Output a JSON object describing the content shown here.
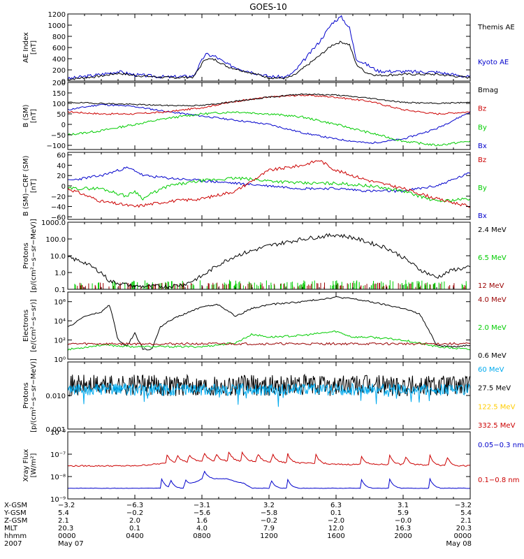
{
  "title": "GOES-10",
  "chart_data": [
    {
      "type": "line",
      "ylabel": "AE Index\n[nT]",
      "ylim": [
        0,
        1200
      ],
      "yticks": [
        0,
        200,
        400,
        600,
        800,
        1000,
        1200
      ],
      "yticklabels": [
        "0",
        "200",
        "400",
        "600",
        "800",
        "1000",
        "1200"
      ],
      "log": false,
      "series": [
        {
          "name": "Kyoto AE",
          "color": "#0000cc",
          "seed": 3,
          "noise": 30,
          "x": [
            0,
            2,
            3,
            4,
            6,
            7.5,
            8.2,
            8.8,
            9.5,
            10.5,
            12,
            13,
            13.5,
            15,
            15.8,
            16.3,
            16.8,
            17.2,
            17.8,
            18.5,
            20,
            22,
            24
          ],
          "y": [
            40,
            120,
            170,
            110,
            70,
            90,
            480,
            440,
            300,
            200,
            80,
            70,
            160,
            700,
            1050,
            1150,
            950,
            400,
            300,
            180,
            170,
            160,
            70
          ]
        },
        {
          "name": "Themis AE",
          "color": "#000000",
          "seed": 7,
          "noise": 20,
          "x": [
            0,
            2,
            3,
            4,
            6,
            7.5,
            8.2,
            8.8,
            9.5,
            10.5,
            12,
            13,
            13.5,
            15,
            15.8,
            16.3,
            16.8,
            17.2,
            17.8,
            18.5,
            20,
            22,
            24
          ],
          "y": [
            30,
            90,
            140,
            100,
            60,
            70,
            400,
            380,
            260,
            180,
            60,
            50,
            100,
            450,
            650,
            700,
            650,
            300,
            150,
            100,
            120,
            120,
            60
          ]
        }
      ]
    },
    {
      "type": "line",
      "ylabel": "B (SM)\n[nT]",
      "ylim": [
        -120,
        200
      ],
      "yticks": [
        -100,
        -50,
        0,
        50,
        100,
        150,
        200
      ],
      "yticklabels": [
        "−100",
        "−50",
        "0",
        "50",
        "100",
        "150",
        "200"
      ],
      "log": false,
      "series": [
        {
          "name": "Bx",
          "color": "#0000cc",
          "seed": 11,
          "noise": 4,
          "x": [
            0,
            2,
            4,
            6,
            8,
            10,
            12,
            14,
            16,
            18,
            20,
            22,
            24
          ],
          "y": [
            70,
            95,
            85,
            60,
            40,
            20,
            0,
            -40,
            -70,
            -90,
            -70,
            -20,
            60
          ]
        },
        {
          "name": "By",
          "color": "#00cc00",
          "seed": 13,
          "noise": 5,
          "x": [
            0,
            2,
            4,
            6,
            8,
            10,
            12,
            14,
            16,
            18,
            20,
            22,
            24
          ],
          "y": [
            -50,
            -30,
            0,
            30,
            50,
            60,
            50,
            35,
            0,
            -40,
            -80,
            -100,
            -80
          ]
        },
        {
          "name": "Bz",
          "color": "#cc0000",
          "seed": 17,
          "noise": 4,
          "x": [
            0,
            2,
            4,
            6,
            8,
            10,
            12,
            14,
            16,
            18,
            20,
            22,
            24
          ],
          "y": [
            60,
            50,
            50,
            60,
            80,
            110,
            130,
            140,
            130,
            110,
            70,
            50,
            60
          ]
        },
        {
          "name": "Bmag",
          "color": "#000000",
          "seed": 19,
          "noise": 3,
          "x": [
            0,
            2,
            4,
            6,
            8,
            10,
            12,
            14,
            16,
            18,
            20,
            22,
            24
          ],
          "y": [
            105,
            100,
            95,
            90,
            90,
            110,
            130,
            145,
            140,
            125,
            105,
            100,
            105
          ]
        }
      ]
    },
    {
      "type": "line",
      "ylabel": "B (SM)−CRF (SM)\n[nT]",
      "ylim": [
        -65,
        65
      ],
      "yticks": [
        -60,
        -40,
        -20,
        0,
        20,
        40,
        60
      ],
      "yticklabels": [
        "−60",
        "−40",
        "−20",
        "0",
        "20",
        "40",
        "60"
      ],
      "log": false,
      "series": [
        {
          "name": "Bx",
          "color": "#0000cc",
          "seed": 23,
          "noise": 2.5,
          "x": [
            0,
            2,
            3.5,
            4,
            4.5,
            6,
            8,
            10,
            12,
            14,
            16,
            18,
            20,
            22,
            24
          ],
          "y": [
            10,
            20,
            35,
            30,
            20,
            15,
            10,
            5,
            0,
            -5,
            -5,
            -10,
            -10,
            0,
            25
          ]
        },
        {
          "name": "By",
          "color": "#00cc00",
          "seed": 29,
          "noise": 3,
          "x": [
            0,
            2,
            3.5,
            4,
            4.5,
            5,
            6,
            8,
            10,
            12,
            14,
            16,
            18,
            20,
            22,
            24
          ],
          "y": [
            -5,
            -5,
            -20,
            -10,
            -25,
            -15,
            0,
            10,
            15,
            10,
            5,
            5,
            0,
            -10,
            -30,
            -25
          ]
        },
        {
          "name": "Bz",
          "color": "#cc0000",
          "seed": 31,
          "noise": 3,
          "x": [
            0,
            2,
            4,
            6,
            8,
            10,
            11,
            12,
            14,
            15,
            16,
            18,
            20,
            22,
            24
          ],
          "y": [
            -5,
            -30,
            -40,
            -30,
            -25,
            -10,
            10,
            30,
            40,
            50,
            30,
            10,
            -5,
            -25,
            -40
          ]
        }
      ]
    },
    {
      "type": "line",
      "ylabel": "Protons\n[p/(cm²−s−sr−MeV)]",
      "ylim": [
        0.1,
        1000
      ],
      "yticks": [
        0.1,
        1,
        10,
        100,
        1000
      ],
      "yticklabels": [
        "0.1",
        "1.0",
        "10.0",
        "100.0",
        "1000.0"
      ],
      "log": true,
      "series": [
        {
          "name": "12 MeV",
          "color": "#990000",
          "seed": 37,
          "noise": 0,
          "spikes": true,
          "spikeY": 0.18,
          "x": [
            0,
            24
          ],
          "y": [
            0.1,
            0.1
          ]
        },
        {
          "name": "6.5 MeV",
          "color": "#00cc00",
          "seed": 41,
          "noise": 0,
          "spikes": true,
          "spikeY": 0.25,
          "x": [
            0,
            24
          ],
          "y": [
            0.1,
            0.1
          ]
        },
        {
          "name": "2.4 MeV",
          "color": "#000000",
          "seed": 43,
          "noise": 0.12,
          "logNoise": true,
          "x": [
            0,
            1,
            2,
            2.5,
            4,
            6,
            7,
            8,
            9,
            10,
            12,
            14,
            16,
            17,
            18,
            19,
            20,
            21,
            22,
            23,
            24
          ],
          "y": [
            8,
            4,
            1,
            0.3,
            0.15,
            0.15,
            0.2,
            0.6,
            3,
            10,
            40,
            100,
            180,
            120,
            60,
            30,
            8,
            1.5,
            0.5,
            1.5,
            2
          ]
        }
      ]
    },
    {
      "type": "line",
      "ylabel": "Electrons\n[e/(cm²−s−sr)]",
      "ylim": [
        1,
        10000000.0
      ],
      "yticks": [
        1,
        100,
        10000,
        1000000
      ],
      "yticklabels": [
        "10⁰",
        "10²",
        "10⁴",
        "10⁶"
      ],
      "log": true,
      "series": [
        {
          "name": "0.6 MeV",
          "color": "#000000",
          "seed": 47,
          "noise": 0.08,
          "logNoise": true,
          "x": [
            0,
            1,
            2,
            2.5,
            3,
            3.5,
            4,
            4.5,
            5,
            5.5,
            6,
            8,
            9,
            10,
            11,
            12,
            14,
            16,
            17,
            18,
            20,
            21,
            22,
            23,
            24
          ],
          "y": [
            2000.0,
            30000.0,
            80000.0,
            500000.0,
            100,
            20,
            500,
            10,
            10,
            2000,
            10000.0,
            300000.0,
            500000.0,
            30000.0,
            200000.0,
            500000.0,
            1000000.0,
            3000000.0,
            2000000.0,
            1000000.0,
            200000.0,
            50000.0,
            30,
            20,
            30
          ]
        },
        {
          "name": "2.0 MeV",
          "color": "#00cc00",
          "seed": 53,
          "noise": 0.1,
          "logNoise": true,
          "x": [
            0,
            2,
            4,
            6,
            8,
            10,
            11,
            12,
            14,
            16,
            17,
            18,
            20,
            22,
            24
          ],
          "y": [
            10,
            30,
            20,
            20,
            20,
            50,
            400,
            200,
            300,
            800,
            200,
            200,
            100,
            20,
            10
          ]
        },
        {
          "name": "4.0 MeV",
          "color": "#990000",
          "seed": 59,
          "noise": 0.12,
          "logNoise": true,
          "x": [
            0,
            24
          ],
          "y": [
            40,
            40
          ]
        }
      ]
    },
    {
      "type": "line",
      "ylabel": "Protons\n[p/(cm²−s−sr−MeV)]",
      "ylim": [
        0.001,
        0.1
      ],
      "yticks": [
        0.001,
        0.01
      ],
      "yticklabels": [
        "0.001",
        "0.010"
      ],
      "log": true,
      "series": [
        {
          "name": "332.5 MeV",
          "color": "#cc0000",
          "seed": 61,
          "noise": 0,
          "hidden": true,
          "x": [
            0,
            24
          ],
          "y": [
            0.01,
            0.01
          ]
        },
        {
          "name": "122.5 MeV",
          "color": "#ffcc00",
          "seed": 67,
          "noise": 0,
          "hidden": true,
          "x": [
            0,
            24
          ],
          "y": [
            0.01,
            0.01
          ]
        },
        {
          "name": "27.5 MeV",
          "color": "#000000",
          "seed": 71,
          "noise": 0.32,
          "logNoise": true,
          "dense": true,
          "x": [
            0,
            24
          ],
          "y": [
            0.02,
            0.02
          ]
        },
        {
          "name": "60 MeV",
          "color": "#00aaee",
          "seed": 73,
          "noise": 0.18,
          "logNoise": true,
          "dense": true,
          "dips": true,
          "x": [
            0,
            24
          ],
          "y": [
            0.015,
            0.015
          ]
        }
      ]
    },
    {
      "type": "line",
      "ylabel": "Xray Flux\n[W/m²]",
      "ylim": [
        1e-09,
        1e-06
      ],
      "yticks": [
        1e-09,
        1e-08,
        1e-07,
        1e-06
      ],
      "yticklabels": [
        "10⁻⁹",
        "10⁻⁸",
        "10⁻⁷",
        "10⁻⁶"
      ],
      "log": true,
      "series": [
        {
          "name": "0.1−0.8 nm",
          "color": "#cc0000",
          "seed": 79,
          "noise": 0.03,
          "logNoise": true,
          "flares": [
            5.9,
            6.5,
            7.2,
            8.1,
            8.8,
            9.6,
            10.4,
            11.3,
            12.2,
            13.1,
            14.8,
            17.5,
            19.2,
            20.1,
            21.6,
            22.6
          ],
          "x": [
            0,
            4,
            6,
            8,
            10,
            12,
            14,
            16,
            18,
            20,
            24
          ],
          "y": [
            3e-08,
            3e-08,
            4e-08,
            5e-08,
            5e-08,
            4.5e-08,
            4e-08,
            3.5e-08,
            3.5e-08,
            3.5e-08,
            3e-08
          ]
        },
        {
          "name": "0.05−0.3 nm",
          "color": "#0000cc",
          "seed": 83,
          "noise": 0.01,
          "logNoise": true,
          "flares": [
            5.6,
            6.1,
            7.0,
            8.1,
            12.1,
            13.1,
            17.5,
            19.2,
            21.6
          ],
          "x": [
            0,
            7,
            7.5,
            8,
            9.5,
            10,
            10.5,
            11,
            12,
            24
          ],
          "y": [
            3e-09,
            3e-09,
            5e-09,
            8e-09,
            8e-09,
            6e-09,
            5e-09,
            3e-09,
            3e-09,
            3e-09
          ]
        }
      ]
    }
  ],
  "ephemeris": {
    "labels": [
      "X-GSM",
      "Y-GSM",
      "Z-GSM",
      "MLT",
      "hhmm",
      "2007"
    ],
    "columns": [
      [
        "−3.2",
        "5.4",
        "2.1",
        "20.3",
        "0000",
        "May 07"
      ],
      [
        "−6.3",
        "−0.2",
        "2.0",
        "0.1",
        "0400",
        ""
      ],
      [
        "−3.1",
        "−5.6",
        "1.6",
        "4.0",
        "0800",
        ""
      ],
      [
        "3.2",
        "−5.8",
        "−0.2",
        "7.9",
        "1200",
        ""
      ],
      [
        "6.3",
        "0.1",
        "−2.0",
        "12.0",
        "1600",
        ""
      ],
      [
        "3.1",
        "5.9",
        "−0.0",
        "16.3",
        "2000",
        ""
      ],
      [
        "−3.2",
        "5.4",
        "2.1",
        "20.3",
        "0000",
        "May 08"
      ]
    ]
  }
}
